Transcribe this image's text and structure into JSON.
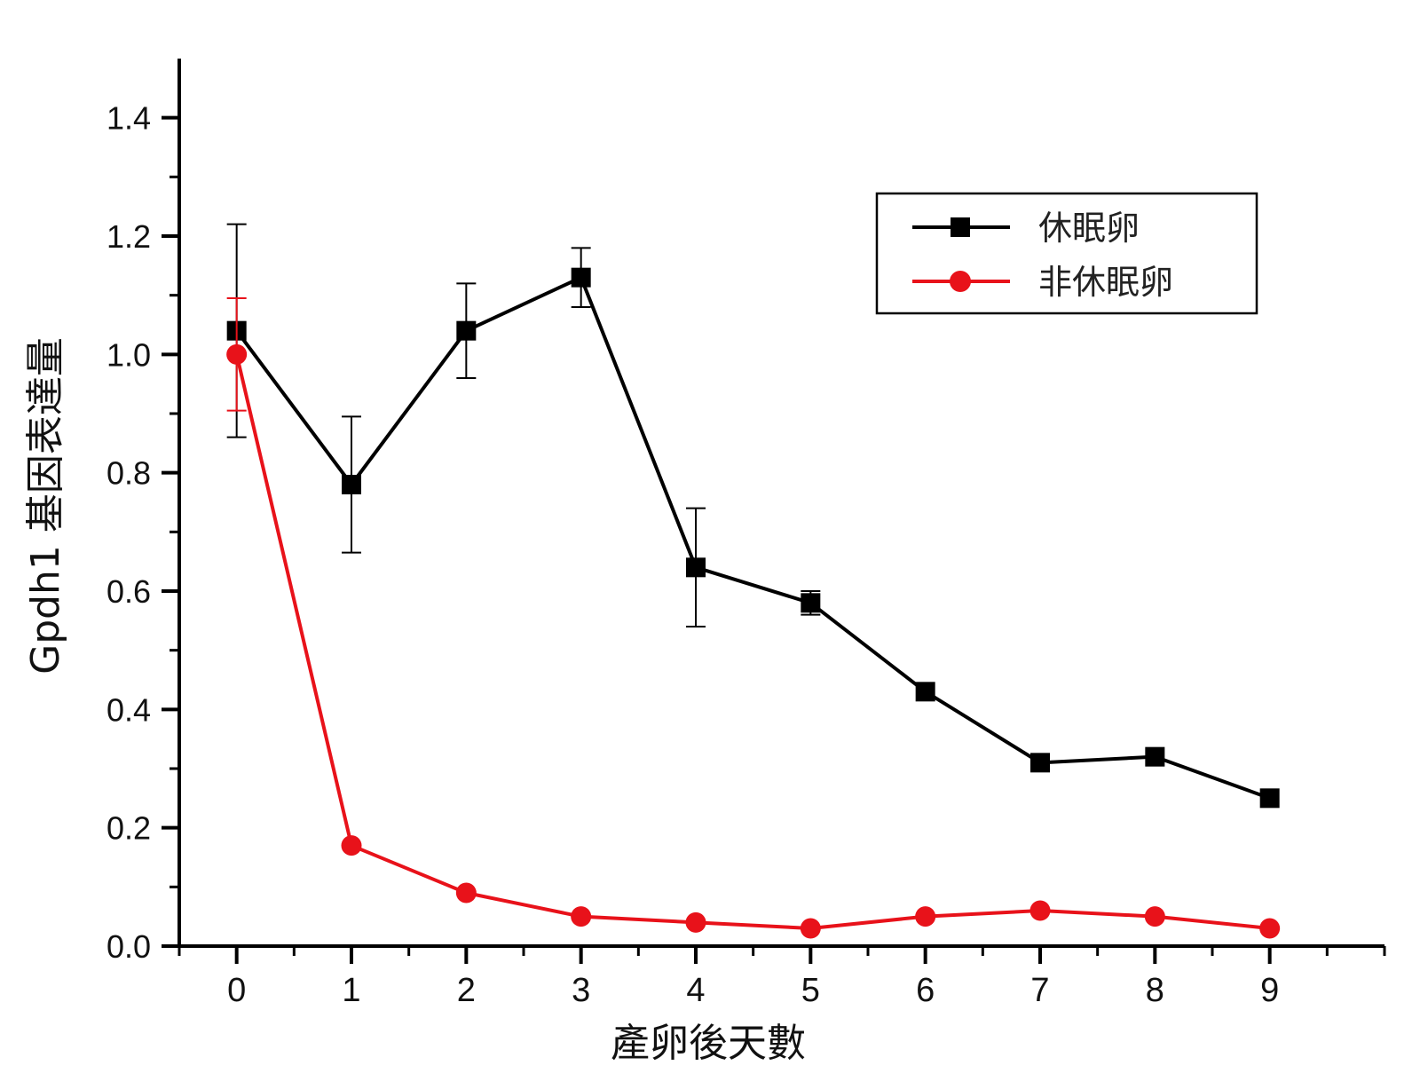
{
  "chart_data": {
    "type": "line",
    "title": "",
    "xlabel": "產卵後天數",
    "ylabel": "Gpdh1 基因表達量",
    "x": [
      0,
      1,
      2,
      3,
      4,
      5,
      6,
      7,
      8,
      9
    ],
    "xticks": [
      "0",
      "1",
      "2",
      "3",
      "4",
      "5",
      "6",
      "7",
      "8",
      "9"
    ],
    "yticks": [
      "0.0",
      "0.2",
      "0.4",
      "0.6",
      "0.8",
      "1.0",
      "1.2",
      "1.4"
    ],
    "xlim": [
      -0.5,
      10
    ],
    "ylim": [
      0,
      1.5
    ],
    "grid": false,
    "legend_position": "top-right",
    "series": [
      {
        "name": "休眠卵",
        "color": "#000000",
        "marker": "square",
        "values": [
          1.04,
          0.78,
          1.04,
          1.13,
          0.64,
          0.58,
          0.43,
          0.31,
          0.32,
          0.25
        ],
        "error": [
          0.18,
          0.115,
          0.08,
          0.05,
          0.1,
          0.02,
          0,
          0,
          0,
          0
        ]
      },
      {
        "name": "非休眠卵",
        "color": "#e8121a",
        "marker": "circle",
        "values": [
          1.0,
          0.17,
          0.09,
          0.05,
          0.04,
          0.03,
          0.05,
          0.06,
          0.05,
          0.03
        ],
        "error": [
          0.095,
          0,
          0,
          0,
          0,
          0,
          0,
          0,
          0,
          0
        ]
      }
    ]
  }
}
